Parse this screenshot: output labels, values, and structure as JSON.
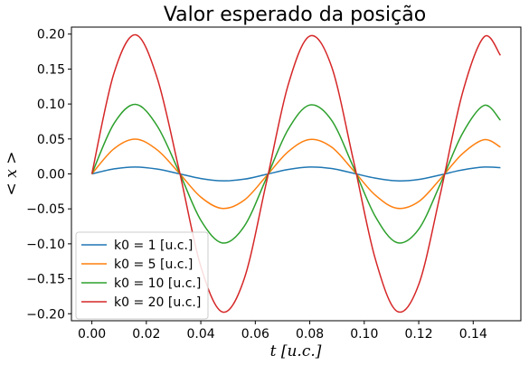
{
  "chart_data": {
    "type": "line",
    "title": "Valor esperado da posição",
    "xlabel": "t [u.c.]",
    "ylabel": "< x >",
    "xlim": [
      -0.0075,
      0.1575
    ],
    "ylim": [
      -0.21,
      0.21
    ],
    "xticks": [
      0.0,
      0.02,
      0.04,
      0.06,
      0.08,
      0.1,
      0.12,
      0.14
    ],
    "xtick_labels": [
      "0.00",
      "0.02",
      "0.04",
      "0.06",
      "0.08",
      "0.10",
      "0.12",
      "0.14"
    ],
    "yticks": [
      -0.2,
      -0.15,
      -0.1,
      -0.05,
      0.0,
      0.05,
      0.1,
      0.15,
      0.2
    ],
    "ytick_labels": [
      "−0.20",
      "−0.15",
      "−0.10",
      "−0.05",
      "0.00",
      "0.05",
      "0.10",
      "0.15",
      "0.20"
    ],
    "grid": false,
    "legend_position": "lower-left",
    "series": [
      {
        "name": "k0 = 1 [u.c.]",
        "color": "#1f77b4",
        "x": [
          0.0,
          0.008,
          0.016,
          0.024,
          0.032,
          0.04,
          0.048,
          0.056,
          0.064,
          0.072,
          0.08,
          0.088,
          0.096,
          0.104,
          0.112,
          0.12,
          0.128,
          0.136,
          0.144,
          0.15
        ],
        "y": [
          0.0,
          0.0071,
          0.0099,
          0.0069,
          0.0003,
          -0.0066,
          -0.0099,
          -0.0075,
          -0.0007,
          0.0063,
          0.0099,
          0.0077,
          0.001,
          -0.006,
          -0.0099,
          -0.0079,
          -0.0014,
          0.0057,
          0.0098,
          0.0089
        ]
      },
      {
        "name": "k0 = 5 [u.c.]",
        "color": "#ff7f0e",
        "x": [
          0.0,
          0.008,
          0.016,
          0.024,
          0.032,
          0.04,
          0.048,
          0.056,
          0.064,
          0.072,
          0.08,
          0.088,
          0.096,
          0.104,
          0.112,
          0.12,
          0.128,
          0.136,
          0.144,
          0.15
        ],
        "y": [
          0.0,
          0.0356,
          0.0497,
          0.0343,
          0.0015,
          -0.0331,
          -0.0494,
          -0.0373,
          -0.0034,
          0.0316,
          0.0493,
          0.0384,
          0.005,
          -0.0302,
          -0.0491,
          -0.0396,
          -0.0069,
          0.0287,
          0.049,
          0.0384
        ]
      },
      {
        "name": "k0 = 10 [u.c.]",
        "color": "#2ca02c",
        "x": [
          0.0,
          0.008,
          0.016,
          0.024,
          0.032,
          0.04,
          0.048,
          0.056,
          0.064,
          0.072,
          0.08,
          0.088,
          0.096,
          0.104,
          0.112,
          0.12,
          0.128,
          0.136,
          0.144,
          0.15
        ],
        "y": [
          0.0,
          0.0713,
          0.0995,
          0.0685,
          0.0031,
          -0.0662,
          -0.0988,
          -0.0746,
          -0.0068,
          0.0632,
          0.0986,
          0.0768,
          0.01,
          -0.0604,
          -0.0982,
          -0.0791,
          -0.0138,
          0.0574,
          0.098,
          0.0768
        ]
      },
      {
        "name": "k0 = 20 [u.c.]",
        "color": "#d62728",
        "x": [
          0.0,
          0.008,
          0.016,
          0.024,
          0.032,
          0.04,
          0.048,
          0.056,
          0.064,
          0.072,
          0.08,
          0.088,
          0.096,
          0.104,
          0.112,
          0.12,
          0.128,
          0.136,
          0.144,
          0.15
        ],
        "y": [
          0.0,
          0.1426,
          0.199,
          0.137,
          0.0062,
          -0.1324,
          -0.1976,
          -0.1492,
          -0.0136,
          0.1264,
          0.1972,
          0.1536,
          0.02,
          -0.1208,
          -0.1964,
          -0.1582,
          -0.0276,
          0.1148,
          0.196,
          0.1696
        ]
      }
    ]
  }
}
